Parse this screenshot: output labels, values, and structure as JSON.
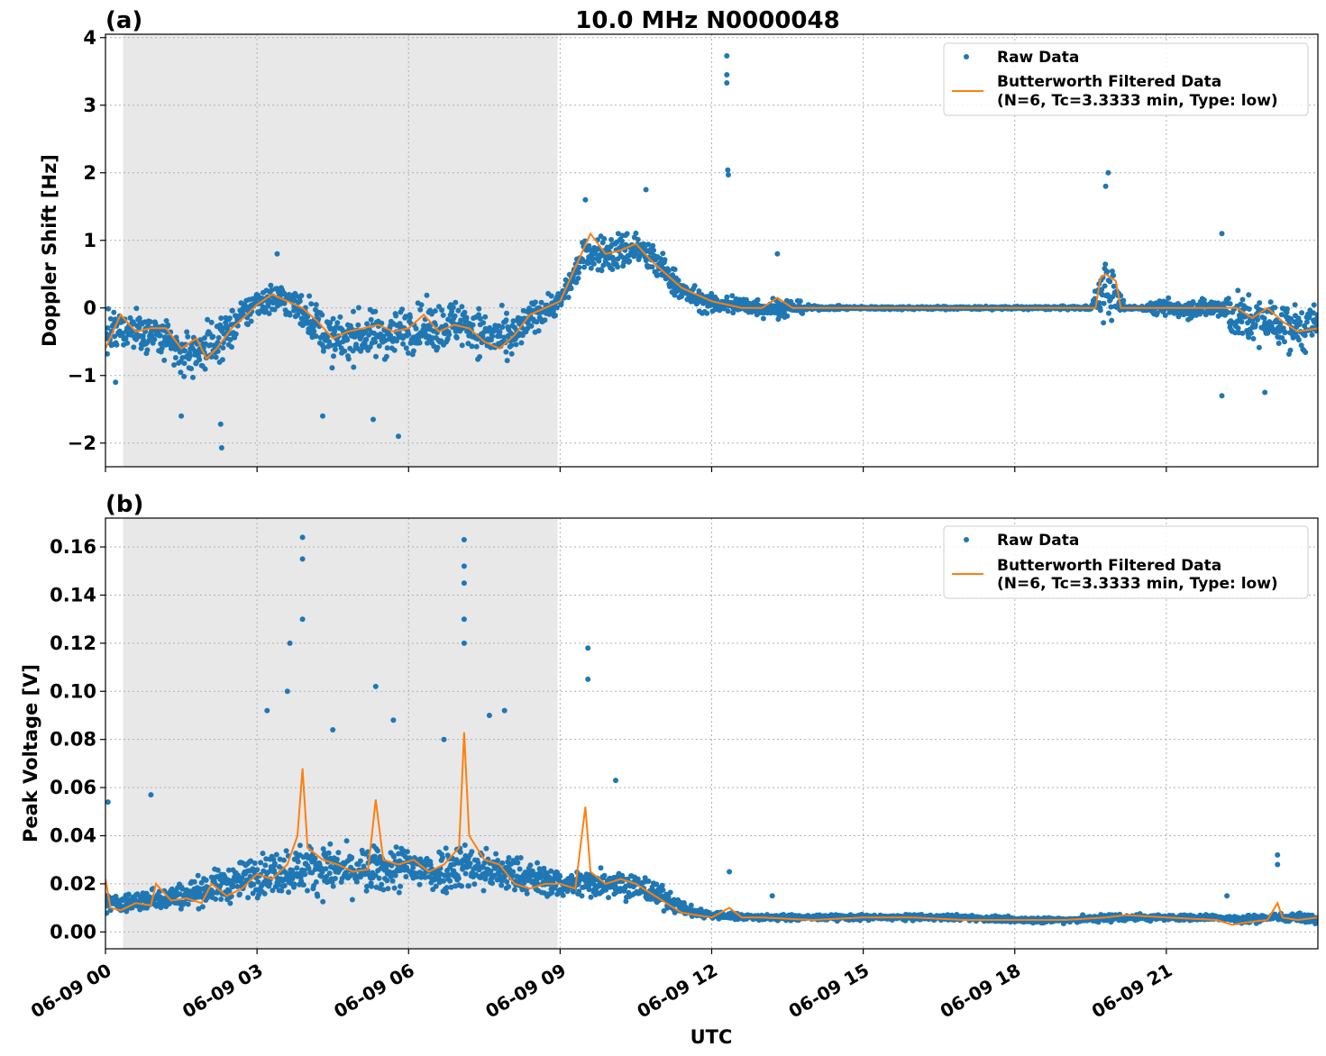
{
  "figure": {
    "title": "10.0 MHz N0000048",
    "xlabel": "UTC"
  },
  "legend": {
    "raw_label": "Raw Data",
    "filtered_label_line1": "Butterworth Filtered Data",
    "filtered_label_line2": "(N=6, Tc=3.3333 min, Type: low)"
  },
  "colors": {
    "raw": "#1f77b4",
    "filtered": "#ff7f0e",
    "night_shade": "#e8e8e8",
    "grid": "#b0b0b0"
  },
  "chart_data": [
    {
      "type": "scatter",
      "panel_label": "(a)",
      "ylabel": "Doppler Shift [Hz]",
      "xlim_hours": [
        0,
        24
      ],
      "ylim": [
        -2.35,
        4.05
      ],
      "yticks": [
        -2,
        -1,
        0,
        1,
        2,
        3,
        4
      ],
      "ytick_labels": [
        "−2",
        "−1",
        "0",
        "1",
        "2",
        "3",
        "4"
      ],
      "xticks_hours": [
        0,
        3,
        6,
        9,
        12,
        15,
        18,
        21
      ],
      "xtick_labels": [],
      "shaded_region_hours": [
        0.35,
        8.95
      ],
      "legend_position": "top-right",
      "grid": true,
      "series": [
        {
          "name": "Raw Data",
          "kind": "points",
          "band_x": [
            0,
            0.5,
            1,
            1.5,
            2,
            2.5,
            3,
            3.5,
            4,
            4.5,
            5,
            5.5,
            6,
            6.5,
            7,
            7.5,
            8,
            8.5,
            9,
            9.5,
            10,
            10.5,
            11,
            11.5,
            12,
            12.5,
            13,
            13.5,
            14,
            15,
            16,
            17,
            18,
            19,
            19.5,
            19.8,
            20.2,
            20.5,
            21,
            22,
            22.3,
            22.7,
            23,
            23.5,
            24
          ],
          "band_center": [
            -0.4,
            -0.3,
            -0.4,
            -0.7,
            -0.6,
            -0.3,
            0.1,
            0.15,
            -0.1,
            -0.5,
            -0.4,
            -0.4,
            -0.3,
            -0.3,
            -0.2,
            -0.4,
            -0.5,
            -0.1,
            0.1,
            0.8,
            0.8,
            0.9,
            0.6,
            0.2,
            0.05,
            0.05,
            0.0,
            0.0,
            0.0,
            0.0,
            0.0,
            0.0,
            0.0,
            0.0,
            0.0,
            0.3,
            0.0,
            0.0,
            0.0,
            0.0,
            -0.1,
            -0.2,
            -0.2,
            -0.3,
            -0.3
          ],
          "band_halfwidth": [
            0.5,
            0.5,
            0.5,
            0.6,
            0.6,
            0.5,
            0.4,
            0.4,
            0.5,
            0.6,
            0.6,
            0.6,
            0.6,
            0.6,
            0.6,
            0.6,
            0.6,
            0.4,
            0.3,
            0.4,
            0.5,
            0.5,
            0.4,
            0.3,
            0.25,
            0.25,
            0.25,
            0.25,
            0.05,
            0.04,
            0.04,
            0.04,
            0.04,
            0.04,
            0.05,
            0.9,
            0.05,
            0.05,
            0.25,
            0.25,
            0.6,
            0.6,
            0.6,
            0.6,
            0.6
          ],
          "outliers": [
            {
              "x": 12.3,
              "y": 3.73
            },
            {
              "x": 12.3,
              "y": 3.45
            },
            {
              "x": 12.3,
              "y": 3.33
            },
            {
              "x": 12.32,
              "y": 2.04
            },
            {
              "x": 12.33,
              "y": 1.97
            },
            {
              "x": 2.3,
              "y": -2.07
            },
            {
              "x": 2.28,
              "y": -1.72
            },
            {
              "x": 5.8,
              "y": -1.9
            },
            {
              "x": 5.3,
              "y": -1.65
            },
            {
              "x": 4.3,
              "y": -1.6
            },
            {
              "x": 1.5,
              "y": -1.6
            },
            {
              "x": 0.2,
              "y": -1.1
            },
            {
              "x": 19.85,
              "y": 2.0
            },
            {
              "x": 19.8,
              "y": 1.8
            },
            {
              "x": 22.1,
              "y": 1.1
            },
            {
              "x": 22.1,
              "y": -1.3
            },
            {
              "x": 22.95,
              "y": -1.25
            },
            {
              "x": 10.7,
              "y": 1.75
            },
            {
              "x": 9.5,
              "y": 1.6
            },
            {
              "x": 13.3,
              "y": 0.8
            },
            {
              "x": 3.4,
              "y": 0.8
            }
          ]
        },
        {
          "name": "Butterworth Filtered Data\n(N=6, Tc=3.3333 min, Type: low)",
          "kind": "line",
          "x": [
            0,
            0.3,
            0.6,
            0.9,
            1.2,
            1.5,
            1.8,
            2.0,
            2.2,
            2.5,
            2.8,
            3.0,
            3.3,
            3.6,
            3.9,
            4.2,
            4.5,
            4.8,
            5.1,
            5.4,
            5.7,
            6.0,
            6.3,
            6.6,
            6.9,
            7.2,
            7.5,
            7.8,
            8.1,
            8.4,
            8.7,
            9.0,
            9.3,
            9.6,
            9.9,
            10.2,
            10.5,
            10.8,
            11.1,
            11.4,
            11.7,
            12.0,
            12.3,
            12.6,
            13.0,
            13.3,
            13.6,
            14.0,
            15,
            16,
            17,
            18,
            19,
            19.6,
            19.7,
            19.8,
            20.0,
            20.1,
            20.3,
            21,
            21.5,
            22,
            22.2,
            22.4,
            22.7,
            23,
            23.3,
            23.6,
            24
          ],
          "y": [
            -0.6,
            -0.1,
            -0.35,
            -0.3,
            -0.3,
            -0.6,
            -0.45,
            -0.75,
            -0.6,
            -0.3,
            -0.1,
            0.05,
            0.2,
            0.1,
            0.0,
            -0.2,
            -0.45,
            -0.35,
            -0.3,
            -0.25,
            -0.35,
            -0.3,
            -0.1,
            -0.35,
            -0.25,
            -0.3,
            -0.5,
            -0.6,
            -0.4,
            -0.1,
            0.0,
            0.1,
            0.6,
            1.1,
            0.8,
            0.85,
            0.95,
            0.7,
            0.5,
            0.3,
            0.2,
            0.1,
            0.05,
            0.0,
            0.0,
            0.15,
            0.0,
            0.0,
            0.0,
            0.0,
            0.0,
            0.0,
            0.0,
            0.0,
            0.45,
            0.5,
            0.4,
            0.0,
            0.0,
            0.0,
            0.0,
            0.0,
            0.0,
            0.0,
            -0.15,
            0.0,
            -0.2,
            -0.35,
            -0.3
          ]
        }
      ]
    },
    {
      "type": "scatter",
      "panel_label": "(b)",
      "ylabel": "Peak Voltage [V]",
      "xlabel": "UTC",
      "xlim_hours": [
        0,
        24
      ],
      "ylim": [
        -0.007,
        0.172
      ],
      "yticks": [
        0.0,
        0.02,
        0.04,
        0.06,
        0.08,
        0.1,
        0.12,
        0.14,
        0.16
      ],
      "ytick_labels": [
        "0.00",
        "0.02",
        "0.04",
        "0.06",
        "0.08",
        "0.10",
        "0.12",
        "0.14",
        "0.16"
      ],
      "xticks_hours": [
        0,
        3,
        6,
        9,
        12,
        15,
        18,
        21
      ],
      "xtick_labels": [
        "06-09 00",
        "06-09 03",
        "06-09 06",
        "06-09 09",
        "06-09 12",
        "06-09 15",
        "06-09 18",
        "06-09 21"
      ],
      "shaded_region_hours": [
        0.35,
        8.95
      ],
      "legend_position": "top-right",
      "grid": true,
      "series": [
        {
          "name": "Raw Data",
          "kind": "points",
          "band_x": [
            0,
            0.5,
            1,
            1.5,
            2,
            2.5,
            3,
            3.5,
            4,
            4.5,
            5,
            5.5,
            6,
            6.5,
            7,
            7.5,
            8,
            8.5,
            9,
            9.5,
            10,
            10.5,
            11,
            11.5,
            12,
            13,
            14,
            15,
            16,
            17,
            18,
            19,
            20,
            21,
            22,
            22.5,
            23,
            24
          ],
          "band_center": [
            0.012,
            0.012,
            0.014,
            0.015,
            0.018,
            0.02,
            0.024,
            0.025,
            0.027,
            0.026,
            0.025,
            0.026,
            0.027,
            0.025,
            0.028,
            0.026,
            0.024,
            0.022,
            0.02,
            0.02,
            0.021,
            0.019,
            0.015,
            0.009,
            0.007,
            0.006,
            0.006,
            0.006,
            0.006,
            0.006,
            0.005,
            0.005,
            0.006,
            0.006,
            0.006,
            0.005,
            0.006,
            0.006
          ],
          "band_halfwidth": [
            0.006,
            0.007,
            0.008,
            0.009,
            0.011,
            0.013,
            0.015,
            0.016,
            0.018,
            0.017,
            0.016,
            0.017,
            0.017,
            0.016,
            0.018,
            0.016,
            0.014,
            0.012,
            0.01,
            0.01,
            0.011,
            0.01,
            0.008,
            0.004,
            0.003,
            0.002,
            0.002,
            0.002,
            0.002,
            0.002,
            0.002,
            0.002,
            0.003,
            0.002,
            0.002,
            0.003,
            0.003,
            0.003
          ],
          "outliers": [
            {
              "x": 3.9,
              "y": 0.164
            },
            {
              "x": 3.9,
              "y": 0.155
            },
            {
              "x": 3.9,
              "y": 0.13
            },
            {
              "x": 7.1,
              "y": 0.163
            },
            {
              "x": 7.1,
              "y": 0.152
            },
            {
              "x": 7.1,
              "y": 0.145
            },
            {
              "x": 7.1,
              "y": 0.13
            },
            {
              "x": 7.1,
              "y": 0.12
            },
            {
              "x": 3.65,
              "y": 0.12
            },
            {
              "x": 3.6,
              "y": 0.1
            },
            {
              "x": 5.35,
              "y": 0.102
            },
            {
              "x": 9.55,
              "y": 0.118
            },
            {
              "x": 9.55,
              "y": 0.105
            },
            {
              "x": 4.5,
              "y": 0.084
            },
            {
              "x": 6.7,
              "y": 0.08
            },
            {
              "x": 7.6,
              "y": 0.09
            },
            {
              "x": 7.9,
              "y": 0.092
            },
            {
              "x": 3.2,
              "y": 0.092
            },
            {
              "x": 5.7,
              "y": 0.088
            },
            {
              "x": 0.05,
              "y": 0.054
            },
            {
              "x": 0.9,
              "y": 0.057
            },
            {
              "x": 10.1,
              "y": 0.063
            },
            {
              "x": 12.35,
              "y": 0.025
            },
            {
              "x": 22.2,
              "y": 0.015
            },
            {
              "x": 23.2,
              "y": 0.032
            },
            {
              "x": 23.2,
              "y": 0.028
            },
            {
              "x": 13.2,
              "y": 0.015
            }
          ]
        },
        {
          "name": "Butterworth Filtered Data\n(N=6, Tc=3.3333 min, Type: low)",
          "kind": "line",
          "x": [
            0,
            0.1,
            0.3,
            0.6,
            0.9,
            1.0,
            1.3,
            1.6,
            1.9,
            2.1,
            2.4,
            2.7,
            3.0,
            3.3,
            3.6,
            3.8,
            3.9,
            4.0,
            4.3,
            4.6,
            4.9,
            5.2,
            5.35,
            5.5,
            5.8,
            6.1,
            6.4,
            6.7,
            7.0,
            7.1,
            7.2,
            7.5,
            7.8,
            8.1,
            8.4,
            8.7,
            9.0,
            9.3,
            9.5,
            9.6,
            9.9,
            10.2,
            10.5,
            10.8,
            11.1,
            11.4,
            11.7,
            12.0,
            12.35,
            12.6,
            13.0,
            14,
            15,
            16,
            17,
            18,
            19,
            19.8,
            20.2,
            21,
            22,
            22.3,
            22.6,
            23,
            23.2,
            23.3,
            23.6,
            24
          ],
          "y": [
            0.022,
            0.01,
            0.009,
            0.012,
            0.011,
            0.02,
            0.013,
            0.014,
            0.012,
            0.02,
            0.015,
            0.018,
            0.024,
            0.022,
            0.028,
            0.04,
            0.068,
            0.035,
            0.03,
            0.028,
            0.025,
            0.026,
            0.055,
            0.03,
            0.028,
            0.03,
            0.025,
            0.028,
            0.035,
            0.083,
            0.04,
            0.03,
            0.028,
            0.02,
            0.018,
            0.02,
            0.02,
            0.018,
            0.052,
            0.025,
            0.02,
            0.022,
            0.02,
            0.016,
            0.012,
            0.008,
            0.007,
            0.006,
            0.01,
            0.006,
            0.006,
            0.005,
            0.006,
            0.006,
            0.005,
            0.005,
            0.005,
            0.006,
            0.007,
            0.006,
            0.005,
            0.003,
            0.004,
            0.005,
            0.012,
            0.006,
            0.005,
            0.006
          ]
        }
      ]
    }
  ]
}
